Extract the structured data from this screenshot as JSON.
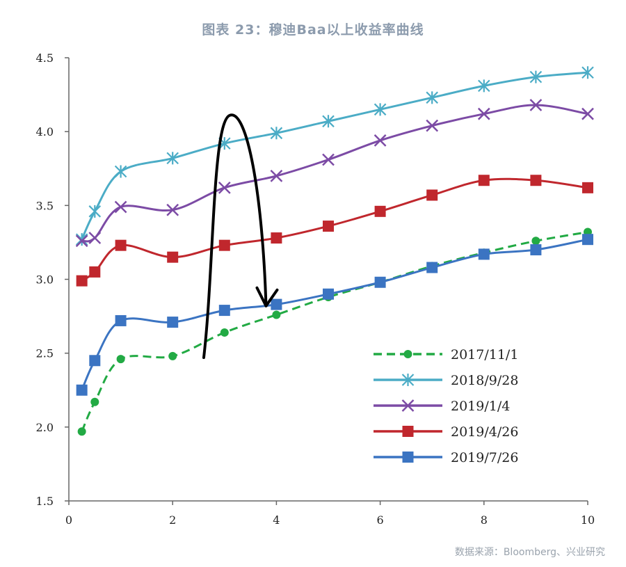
{
  "header": {
    "title": "图表 23：穆迪Baa以上收益率曲线"
  },
  "footer": {
    "source": "数据来源：Bloomberg、兴业研究"
  },
  "chart_data": {
    "type": "line",
    "title": "图表 23：穆迪Baa以上收益率曲线",
    "xlabel": "",
    "ylabel": "",
    "xlim": [
      0,
      10
    ],
    "ylim": [
      1.5,
      4.5
    ],
    "x_ticks": [
      "0",
      "2",
      "4",
      "6",
      "8",
      "10"
    ],
    "y_ticks": [
      "1.5",
      "2.0",
      "2.5",
      "3.0",
      "3.5",
      "4.0",
      "4.5"
    ],
    "x": [
      0.25,
      0.5,
      1,
      2,
      3,
      4,
      5,
      6,
      7,
      8,
      9,
      10
    ],
    "legend_position": "bottom-right",
    "series": [
      {
        "name": "2017/11/1",
        "color": "#22aa44",
        "marker": "circle",
        "dashed": true,
        "values": [
          1.97,
          2.17,
          2.46,
          2.48,
          2.64,
          2.76,
          2.88,
          2.98,
          3.09,
          3.18,
          3.26,
          3.32
        ]
      },
      {
        "name": "2018/9/28",
        "color": "#4bacc6",
        "marker": "star",
        "dashed": false,
        "values": [
          3.27,
          3.46,
          3.73,
          3.82,
          3.92,
          3.99,
          4.07,
          4.15,
          4.23,
          4.31,
          4.37,
          4.4
        ]
      },
      {
        "name": "2019/1/4",
        "color": "#7c4ba5",
        "marker": "x",
        "dashed": false,
        "values": [
          3.26,
          3.28,
          3.49,
          3.47,
          3.62,
          3.7,
          3.81,
          3.94,
          4.04,
          4.12,
          4.18,
          4.12
        ]
      },
      {
        "name": "2019/4/26",
        "color": "#c0272d",
        "marker": "square",
        "dashed": false,
        "values": [
          2.99,
          3.05,
          3.23,
          3.15,
          3.23,
          3.28,
          3.36,
          3.46,
          3.57,
          3.67,
          3.67,
          3.62
        ]
      },
      {
        "name": "2019/7/26",
        "color": "#3b74c2",
        "marker": "square",
        "dashed": false,
        "values": [
          2.25,
          2.45,
          2.72,
          2.71,
          2.79,
          2.83,
          2.9,
          2.98,
          3.08,
          3.17,
          3.2,
          3.27
        ]
      }
    ],
    "annotation": {
      "type": "hand-drawn-arrow",
      "color": "#000000",
      "points": [
        [
          2.6,
          2.47
        ],
        [
          3.1,
          4.11
        ],
        [
          3.8,
          2.82
        ]
      ]
    }
  }
}
